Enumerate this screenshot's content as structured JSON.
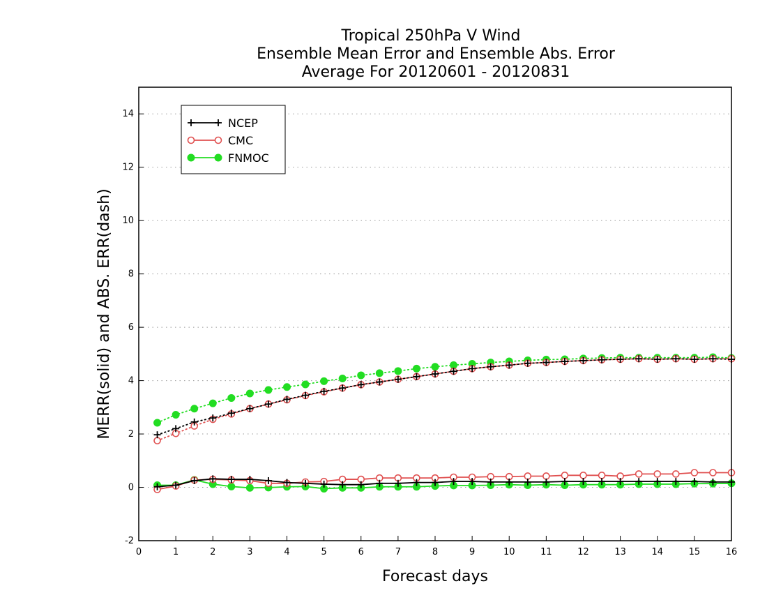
{
  "chart_data": {
    "type": "line",
    "title": "Tropical 250hPa V Wind",
    "subtitle": "Ensemble Mean Error and Ensemble Abs. Error",
    "subtitle2": "Average For 20120601 - 20120831",
    "xlabel": "Forecast days",
    "ylabel": "MERR(solid) and ABS. ERR(dash)",
    "xlim": [
      0,
      16
    ],
    "ylim": [
      -2,
      15
    ],
    "xticks": [
      "0",
      "1",
      "2",
      "3",
      "4",
      "5",
      "6",
      "7",
      "8",
      "9",
      "10",
      "11",
      "12",
      "13",
      "14",
      "15",
      "16"
    ],
    "yticks": [
      "-2",
      "0",
      "2",
      "4",
      "6",
      "8",
      "10",
      "12",
      "14"
    ],
    "grid": "horizontal-dotted",
    "legend_placement": "top-left",
    "x": [
      0.5,
      1,
      1.5,
      2,
      2.5,
      3,
      3.5,
      4,
      4.5,
      5,
      5.5,
      6,
      6.5,
      7,
      7.5,
      8,
      8.5,
      9,
      9.5,
      10,
      10.5,
      11,
      11.5,
      12,
      12.5,
      13,
      13.5,
      14,
      14.5,
      15,
      15.5,
      16
    ],
    "series": [
      {
        "name": "NCEP",
        "color": "#000000",
        "marker": "plus",
        "mean_error": [
          0.02,
          0.08,
          0.25,
          0.32,
          0.3,
          0.3,
          0.25,
          0.18,
          0.15,
          0.12,
          0.1,
          0.1,
          0.15,
          0.15,
          0.18,
          0.18,
          0.22,
          0.22,
          0.2,
          0.2,
          0.2,
          0.2,
          0.22,
          0.22,
          0.22,
          0.22,
          0.22,
          0.22,
          0.22,
          0.22,
          0.2,
          0.2
        ],
        "abs_error": [
          1.97,
          2.2,
          2.45,
          2.6,
          2.78,
          2.95,
          3.12,
          3.3,
          3.45,
          3.6,
          3.72,
          3.85,
          3.95,
          4.05,
          4.15,
          4.25,
          4.35,
          4.45,
          4.52,
          4.58,
          4.65,
          4.68,
          4.72,
          4.75,
          4.78,
          4.8,
          4.82,
          4.8,
          4.82,
          4.8,
          4.82,
          4.8
        ]
      },
      {
        "name": "CMC",
        "color": "#e05050",
        "marker": "open-circle",
        "mean_error": [
          -0.08,
          0.05,
          0.27,
          0.3,
          0.28,
          0.25,
          0.15,
          0.15,
          0.2,
          0.22,
          0.3,
          0.3,
          0.35,
          0.35,
          0.35,
          0.35,
          0.38,
          0.38,
          0.4,
          0.4,
          0.42,
          0.42,
          0.45,
          0.45,
          0.45,
          0.42,
          0.5,
          0.5,
          0.5,
          0.55,
          0.55,
          0.55
        ],
        "abs_error": [
          1.75,
          2.02,
          2.3,
          2.55,
          2.75,
          2.95,
          3.12,
          3.28,
          3.44,
          3.58,
          3.72,
          3.85,
          3.95,
          4.05,
          4.15,
          4.25,
          4.35,
          4.45,
          4.52,
          4.58,
          4.65,
          4.68,
          4.72,
          4.75,
          4.78,
          4.8,
          4.82,
          4.8,
          4.82,
          4.8,
          4.82,
          4.82
        ]
      },
      {
        "name": "FNMOC",
        "color": "#22dd22",
        "marker": "filled-circle",
        "mean_error": [
          0.08,
          0.08,
          0.28,
          0.12,
          0.03,
          -0.02,
          -0.01,
          0.02,
          0.03,
          -0.05,
          -0.02,
          -0.02,
          0.02,
          0.02,
          0.02,
          0.05,
          0.07,
          0.07,
          0.08,
          0.1,
          0.08,
          0.1,
          0.08,
          0.1,
          0.1,
          0.1,
          0.12,
          0.12,
          0.12,
          0.14,
          0.14,
          0.15
        ],
        "abs_error": [
          2.42,
          2.72,
          2.95,
          3.15,
          3.35,
          3.52,
          3.65,
          3.76,
          3.86,
          3.98,
          4.08,
          4.2,
          4.28,
          4.36,
          4.45,
          4.52,
          4.58,
          4.63,
          4.68,
          4.72,
          4.76,
          4.79,
          4.8,
          4.83,
          4.85,
          4.86,
          4.86,
          4.86,
          4.86,
          4.86,
          4.88,
          4.85
        ]
      }
    ]
  }
}
